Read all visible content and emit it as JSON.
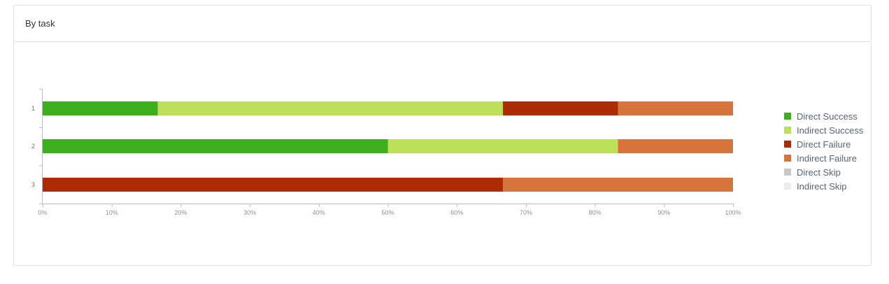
{
  "panel": {
    "title": "By task"
  },
  "chart_data": {
    "type": "bar",
    "orientation": "horizontal",
    "stacked": true,
    "categories": [
      "1",
      "2",
      "3"
    ],
    "series": [
      {
        "name": "Direct Success",
        "color": "#3daf1f",
        "values": [
          16.67,
          50,
          0
        ]
      },
      {
        "name": "Indirect Success",
        "color": "#bde05a",
        "values": [
          50,
          33.33,
          0
        ]
      },
      {
        "name": "Direct Failure",
        "color": "#ad2c03",
        "values": [
          16.67,
          0,
          66.67
        ]
      },
      {
        "name": "Indirect Failure",
        "color": "#d7743b",
        "values": [
          16.67,
          16.67,
          33.33
        ]
      },
      {
        "name": "Direct Skip",
        "color": "#c8c8c8",
        "values": [
          0,
          0,
          0
        ]
      },
      {
        "name": "Indirect Skip",
        "color": "#ececec",
        "values": [
          0,
          0,
          0
        ]
      }
    ],
    "xlim": [
      0,
      100
    ],
    "xticks": [
      "0%",
      "10%",
      "20%",
      "30%",
      "40%",
      "50%",
      "60%",
      "70%",
      "80%",
      "90%",
      "100%"
    ],
    "legend": "right"
  }
}
